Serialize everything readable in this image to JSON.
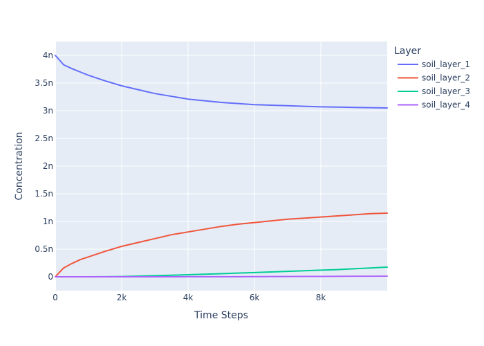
{
  "chart_data": {
    "type": "line",
    "title": "",
    "xlabel": "Time Steps",
    "ylabel": "Concentration",
    "xlim": [
      0,
      10000
    ],
    "ylim": [
      -0.25,
      4.25
    ],
    "y_unit_suffix": "n",
    "x_ticks": [
      0,
      2000,
      4000,
      6000,
      8000
    ],
    "x_tick_labels": [
      "0",
      "2k",
      "4k",
      "6k",
      "8k"
    ],
    "y_ticks": [
      0,
      0.5,
      1,
      1.5,
      2,
      2.5,
      3,
      3.5,
      4
    ],
    "y_tick_labels": [
      "0",
      "0.5n",
      "1n",
      "1.5n",
      "2n",
      "2.5n",
      "3n",
      "3.5n",
      "4n"
    ],
    "grid": true,
    "legend": {
      "title": "Layer",
      "placement": "top-right, outside plot"
    },
    "x": [
      0,
      250,
      500,
      750,
      1000,
      1500,
      2000,
      2500,
      3000,
      3500,
      4000,
      4500,
      5000,
      5500,
      6000,
      6500,
      7000,
      7500,
      8000,
      8500,
      9000,
      9500,
      10000
    ],
    "series": [
      {
        "name": "soil_layer_1",
        "color": "#636efa",
        "values": [
          4.0,
          3.83,
          3.76,
          3.7,
          3.64,
          3.54,
          3.45,
          3.38,
          3.31,
          3.26,
          3.21,
          3.18,
          3.15,
          3.13,
          3.11,
          3.1,
          3.09,
          3.08,
          3.07,
          3.065,
          3.06,
          3.055,
          3.05
        ]
      },
      {
        "name": "soil_layer_2",
        "color": "#ef553b",
        "values": [
          0.0,
          0.16,
          0.24,
          0.31,
          0.36,
          0.46,
          0.55,
          0.62,
          0.69,
          0.76,
          0.81,
          0.86,
          0.91,
          0.95,
          0.98,
          1.01,
          1.04,
          1.06,
          1.08,
          1.1,
          1.12,
          1.14,
          1.15
        ]
      },
      {
        "name": "soil_layer_3",
        "color": "#00cc96",
        "values": [
          0.0,
          0.0,
          0.0,
          0.0,
          0.0,
          0.002,
          0.005,
          0.012,
          0.02,
          0.028,
          0.037,
          0.047,
          0.057,
          0.067,
          0.077,
          0.087,
          0.098,
          0.11,
          0.12,
          0.13,
          0.145,
          0.16,
          0.175
        ]
      },
      {
        "name": "soil_layer_4",
        "color": "#ab63fa",
        "values": [
          0.0,
          0.0,
          0.0,
          0.0,
          0.0,
          0.0,
          0.0,
          0.0,
          0.0,
          0.0,
          0.001,
          0.001,
          0.002,
          0.002,
          0.003,
          0.004,
          0.005,
          0.006,
          0.007,
          0.008,
          0.009,
          0.01,
          0.011
        ]
      }
    ]
  }
}
